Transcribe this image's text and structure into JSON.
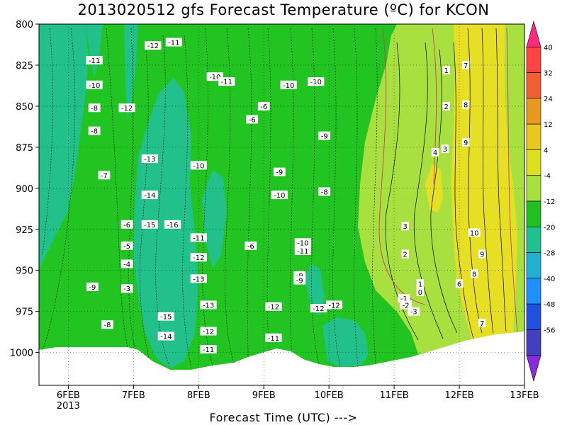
{
  "chart_data": {
    "type": "contour",
    "title": "2013020512 gfs Forecast Temperature (ºC) for KCON",
    "xlabel": "Forecast Time (UTC) --->",
    "x_ticks": [
      "6FEB",
      "7FEB",
      "8FEB",
      "9FEB",
      "10FEB",
      "11FEB",
      "12FEB",
      "13FEB"
    ],
    "x_year": "2013",
    "y_ticks": [
      "800",
      "825",
      "850",
      "875",
      "900",
      "925",
      "950",
      "975",
      "1000"
    ],
    "ylim": [
      800,
      1020
    ],
    "colorbar": {
      "labels": [
        "40",
        "32",
        "24",
        "12",
        "4",
        "-4",
        "-12",
        "-20",
        "-28",
        "-40",
        "-48",
        "-56"
      ],
      "colors": [
        "#ff2a80",
        "#ff4444",
        "#f06030",
        "#e89a20",
        "#e8c81e",
        "#dde020",
        "#a8e040",
        "#20c020",
        "#20c090",
        "#20b0d0",
        "#1e90ff",
        "#2050e0",
        "#4040c0",
        "#8a2ae0"
      ]
    },
    "contour_labels": [
      {
        "t": "-11",
        "day": 6.4,
        "p": 822
      },
      {
        "t": "-12",
        "day": 7.3,
        "p": 813
      },
      {
        "t": "-11",
        "day": 7.62,
        "p": 811
      },
      {
        "t": "-10",
        "day": 6.4,
        "p": 837
      },
      {
        "t": "-8",
        "day": 6.4,
        "p": 851
      },
      {
        "t": "-12",
        "day": 6.9,
        "p": 851
      },
      {
        "t": "-8",
        "day": 6.4,
        "p": 865
      },
      {
        "t": "-7",
        "day": 6.55,
        "p": 892
      },
      {
        "t": "-13",
        "day": 7.25,
        "p": 882
      },
      {
        "t": "-10",
        "day": 8.0,
        "p": 886
      },
      {
        "t": "-10",
        "day": 8.25,
        "p": 832
      },
      {
        "t": "-11",
        "day": 8.43,
        "p": 835
      },
      {
        "t": "-10",
        "day": 9.38,
        "p": 837
      },
      {
        "t": "-10",
        "day": 9.8,
        "p": 835
      },
      {
        "t": "-6",
        "day": 9.0,
        "p": 850
      },
      {
        "t": "-6",
        "day": 8.82,
        "p": 858
      },
      {
        "t": "-9",
        "day": 9.93,
        "p": 868
      },
      {
        "t": "-9",
        "day": 9.24,
        "p": 890
      },
      {
        "t": "-10",
        "day": 9.24,
        "p": 904
      },
      {
        "t": "-8",
        "day": 9.93,
        "p": 902
      },
      {
        "t": "-14",
        "day": 7.25,
        "p": 904
      },
      {
        "t": "-6",
        "day": 6.9,
        "p": 922
      },
      {
        "t": "-15",
        "day": 7.25,
        "p": 922
      },
      {
        "t": "-16",
        "day": 7.6,
        "p": 922
      },
      {
        "t": "-11",
        "day": 8.0,
        "p": 930
      },
      {
        "t": "-5",
        "day": 6.9,
        "p": 935
      },
      {
        "t": "-6",
        "day": 8.8,
        "p": 935
      },
      {
        "t": "-10",
        "day": 9.6,
        "p": 933
      },
      {
        "t": "-11",
        "day": 9.6,
        "p": 938
      },
      {
        "t": "-12",
        "day": 8.0,
        "p": 942
      },
      {
        "t": "-4",
        "day": 6.9,
        "p": 946
      },
      {
        "t": "-9",
        "day": 9.55,
        "p": 953
      },
      {
        "t": "-9",
        "day": 9.55,
        "p": 956
      },
      {
        "t": "-13",
        "day": 8.0,
        "p": 955
      },
      {
        "t": "-9",
        "day": 6.37,
        "p": 960
      },
      {
        "t": "-3",
        "day": 6.9,
        "p": 961
      },
      {
        "t": "-13",
        "day": 8.15,
        "p": 971
      },
      {
        "t": "-12",
        "day": 9.15,
        "p": 972
      },
      {
        "t": "-12",
        "day": 9.84,
        "p": 973
      },
      {
        "t": "-12",
        "day": 10.08,
        "p": 971
      },
      {
        "t": "-15",
        "day": 7.5,
        "p": 978
      },
      {
        "t": "-8",
        "day": 6.6,
        "p": 983
      },
      {
        "t": "-12",
        "day": 8.15,
        "p": 987
      },
      {
        "t": "-14",
        "day": 7.5,
        "p": 990
      },
      {
        "t": "-11",
        "day": 9.15,
        "p": 991
      },
      {
        "t": "-11",
        "day": 8.15,
        "p": 998
      },
      {
        "t": "1",
        "day": 11.8,
        "p": 828
      },
      {
        "t": "7",
        "day": 12.1,
        "p": 825
      },
      {
        "t": "2",
        "day": 11.8,
        "p": 850
      },
      {
        "t": "8",
        "day": 12.1,
        "p": 849
      },
      {
        "t": "9",
        "day": 12.1,
        "p": 872
      },
      {
        "t": "4",
        "day": 11.63,
        "p": 878
      },
      {
        "t": "3",
        "day": 11.78,
        "p": 876
      },
      {
        "t": "3",
        "day": 11.17,
        "p": 923
      },
      {
        "t": "10",
        "day": 12.23,
        "p": 927
      },
      {
        "t": "2",
        "day": 11.17,
        "p": 940
      },
      {
        "t": "9",
        "day": 12.35,
        "p": 940
      },
      {
        "t": "8",
        "day": 12.23,
        "p": 952
      },
      {
        "t": "1",
        "day": 11.4,
        "p": 958
      },
      {
        "t": "6",
        "day": 12.0,
        "p": 958
      },
      {
        "t": "0",
        "day": 11.4,
        "p": 963
      },
      {
        "t": "-1",
        "day": 11.15,
        "p": 967
      },
      {
        "t": "-2",
        "day": 11.18,
        "p": 971
      },
      {
        "t": "-3",
        "day": 11.3,
        "p": 975
      },
      {
        "t": "7",
        "day": 12.35,
        "p": 982
      }
    ]
  }
}
